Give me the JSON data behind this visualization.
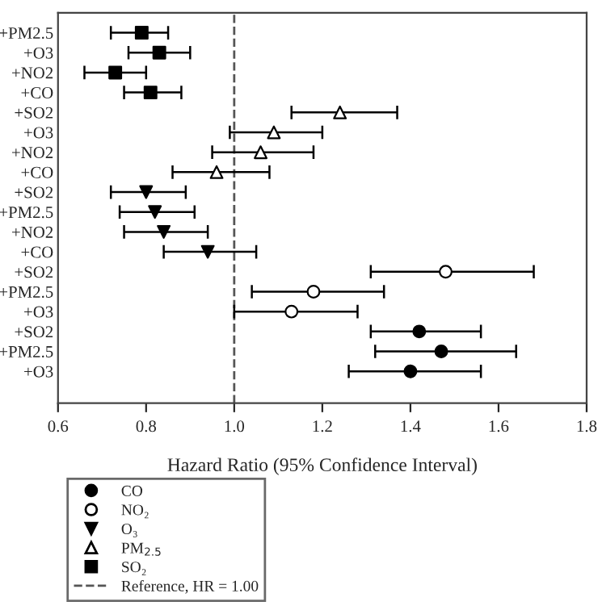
{
  "chart_data": {
    "type": "scatter",
    "orientation": "horizontal",
    "xlabel": "Hazard Ratio (95% Confidence Interval)",
    "categories": [
      "+PM2.5",
      "+O3",
      "+NO2",
      "+CO",
      "+SO2",
      "+O3",
      "+NO2",
      "+CO",
      "+SO2",
      "+PM2.5",
      "+NO2",
      "+CO",
      "+SO2",
      "+PM2.5",
      "+O3",
      "+SO2",
      "+PM2.5",
      "+O3"
    ],
    "xlim": [
      0.6,
      1.8
    ],
    "xticks": [
      0.6,
      0.8,
      {
        "value": 1.0,
        "label": "1.0"
      },
      1.2,
      1.4,
      1.6,
      1.8
    ],
    "series": [
      {
        "name": "CO",
        "color": "#000000",
        "marker": "circle",
        "values": [
          null,
          null,
          null,
          null,
          null,
          null,
          null,
          null,
          null,
          null,
          null,
          null,
          null,
          null,
          null,
          1.42,
          1.47,
          1.4
        ],
        "errors": [
          null,
          null,
          null,
          null,
          null,
          null,
          null,
          null,
          null,
          null,
          null,
          null,
          null,
          null,
          null,
          [
            1.31,
            1.56
          ],
          [
            1.32,
            1.64
          ],
          [
            1.26,
            1.56
          ]
        ]
      },
      {
        "name": "NO₂",
        "color": "#000000",
        "marker": "circle-open",
        "values": [
          null,
          null,
          null,
          null,
          null,
          null,
          null,
          null,
          null,
          null,
          null,
          null,
          1.48,
          1.18,
          1.13,
          null,
          null,
          null
        ],
        "errors": [
          null,
          null,
          null,
          null,
          null,
          null,
          null,
          null,
          null,
          null,
          null,
          null,
          [
            1.31,
            1.68
          ],
          [
            1.04,
            1.34
          ],
          [
            1.0,
            1.28
          ],
          null,
          null,
          null
        ]
      },
      {
        "name": "O₃",
        "color": "#000000",
        "marker": "triangle-down",
        "values": [
          null,
          null,
          null,
          null,
          null,
          null,
          null,
          null,
          0.8,
          0.82,
          0.84,
          0.94,
          null,
          null,
          null,
          null,
          null,
          null
        ],
        "errors": [
          null,
          null,
          null,
          null,
          null,
          null,
          null,
          null,
          [
            0.72,
            0.89
          ],
          [
            0.74,
            0.91
          ],
          [
            0.75,
            0.94
          ],
          [
            0.84,
            1.05
          ],
          null,
          null,
          null,
          null,
          null,
          null
        ]
      },
      {
        "name": "PM$_{2.5}$",
        "color": "#000000",
        "marker": "triangle-open",
        "values": [
          null,
          null,
          null,
          null,
          1.24,
          1.09,
          1.06,
          0.96,
          null,
          null,
          null,
          null,
          null,
          null,
          null,
          null,
          null,
          null
        ],
        "errors": [
          null,
          null,
          null,
          null,
          [
            1.13,
            1.37
          ],
          [
            0.99,
            1.2
          ],
          [
            0.95,
            1.18
          ],
          [
            0.86,
            1.08
          ],
          null,
          null,
          null,
          null,
          null,
          null,
          null,
          null,
          null,
          null
        ]
      },
      {
        "name": "SO₂",
        "color": "#000000",
        "marker": "square",
        "values": [
          0.79,
          0.83,
          0.73,
          0.81,
          null,
          null,
          null,
          null,
          null,
          null,
          null,
          null,
          null,
          null,
          null,
          null,
          null,
          null
        ],
        "errors": [
          [
            0.72,
            0.85
          ],
          [
            0.76,
            0.9
          ],
          [
            0.66,
            0.8
          ],
          [
            0.75,
            0.88
          ],
          null,
          null,
          null,
          null,
          null,
          null,
          null,
          null,
          null,
          null,
          null,
          null,
          null,
          null
        ]
      }
    ],
    "ref_lines": [
      {
        "axis": "x",
        "value": 1.0,
        "label": "Reference, HR = 1.00",
        "color": "#555555",
        "line_style": "dashed"
      }
    ],
    "legend": "bottom left",
    "grid": false
  }
}
